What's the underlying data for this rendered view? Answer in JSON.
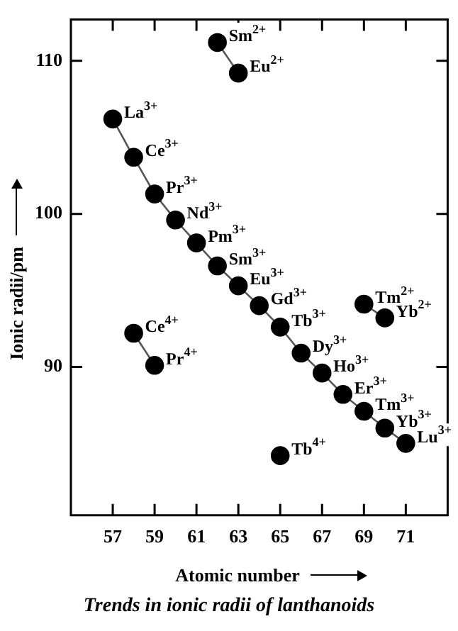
{
  "chart_data": {
    "type": "line",
    "title": "Trends in ionic radii of lanthanoids",
    "xlabel": "Atomic number",
    "ylabel": "Ionic radii/pm",
    "xlim": [
      55,
      73
    ],
    "xticks": [
      57,
      59,
      61,
      63,
      65,
      67,
      69,
      71
    ],
    "ylim": [
      80.3,
      112.7
    ],
    "yticks": [
      90,
      100,
      110
    ],
    "grid": false,
    "legend": false,
    "marker": "circle",
    "line_style": "solid",
    "series": [
      {
        "color": "#000000",
        "x": [
          57,
          58,
          59,
          60,
          61,
          62,
          63,
          64,
          65,
          66,
          67,
          68,
          69,
          70,
          71
        ],
        "values": [
          106.2,
          103.7,
          101.3,
          99.6,
          98.1,
          96.6,
          95.3,
          94.0,
          92.6,
          90.9,
          89.6,
          88.2,
          87.1,
          86.0,
          85.0
        ],
        "value_labels": [
          "La$^{3+}$",
          "Ce$^{3+}$",
          "Pr$^{3+}$",
          "Nd$^{3+}$",
          "Pm$^{3+}$",
          "Sm$^{3+}$",
          "Eu$^{3+}$",
          "Gd$^{3+}$",
          "Tb$^{3+}$",
          "Dy$^{3+}$",
          "Ho$^{3+}$",
          "Er$^{3+}$",
          "Tm$^{3+}$",
          "Yb$^{3+}$",
          "Lu$^{3+}$"
        ]
      },
      {
        "color": "#000000",
        "x": [
          62,
          63
        ],
        "values": [
          111.2,
          109.2
        ],
        "value_labels": [
          "Sm$^{2+}$",
          "Eu$^{2+}$"
        ]
      },
      {
        "color": "#000000",
        "x": [
          58,
          59
        ],
        "values": [
          92.2,
          90.1
        ],
        "value_labels": [
          "Ce$^{4+}$",
          "Pr$^{4+}$"
        ]
      },
      {
        "color": "#000000",
        "x": [
          69,
          70
        ],
        "values": [
          94.1,
          93.2
        ],
        "value_labels": [
          "Tm$^{2+}$",
          "Yb$^{2+}$"
        ]
      },
      {
        "color": "#000000",
        "x": [
          65
        ],
        "values": [
          84.2
        ],
        "value_labels": [
          "Tb$^{4+}$"
        ]
      }
    ]
  }
}
